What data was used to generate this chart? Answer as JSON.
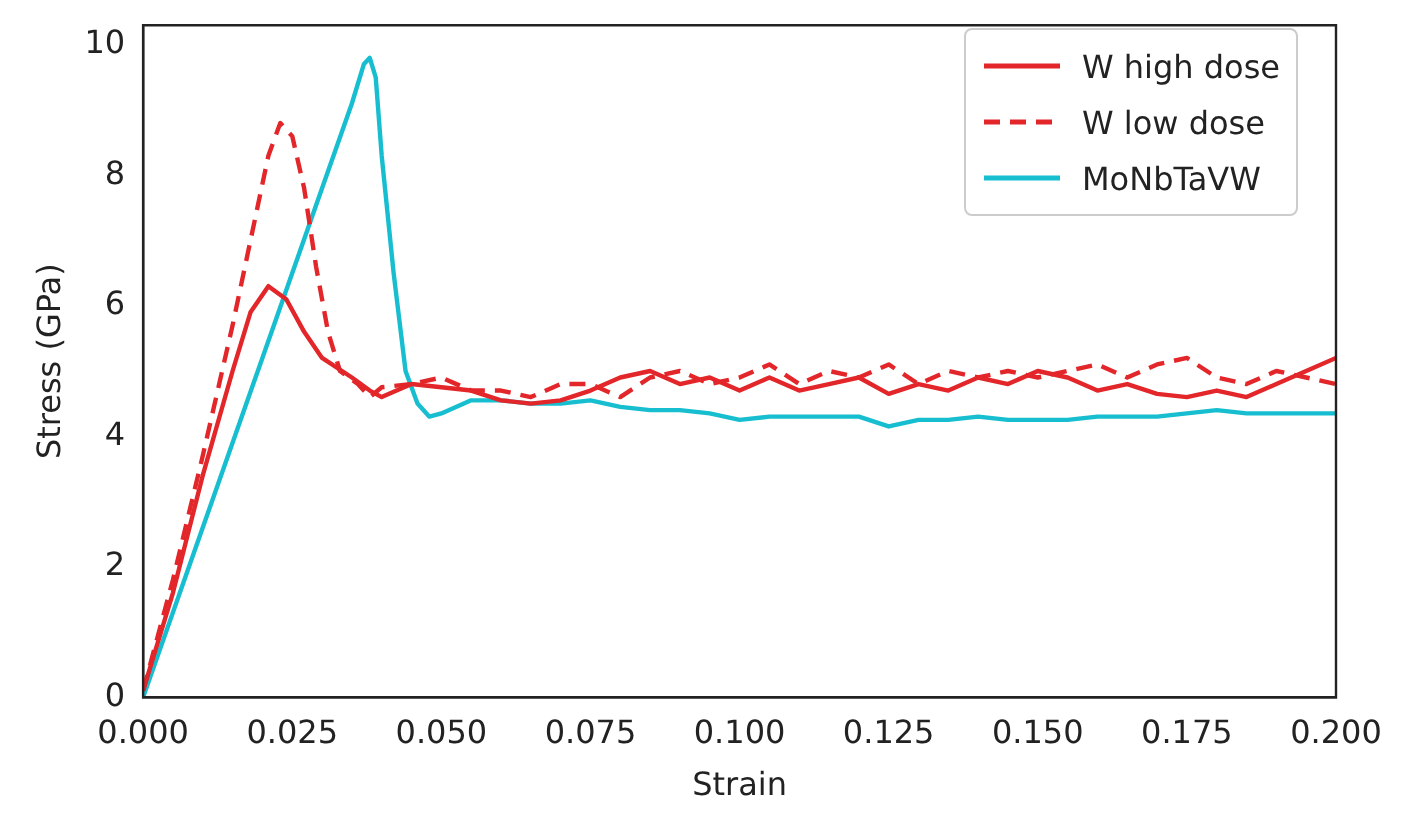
{
  "chart_data": {
    "type": "line",
    "xlabel": "Strain",
    "ylabel": "Stress (GPa)",
    "xlim": [
      0,
      0.2
    ],
    "ylim": [
      0,
      10.3
    ],
    "xticks": [
      {
        "value": 0,
        "label": "0.000"
      },
      {
        "value": 0.025,
        "label": "0.025"
      },
      {
        "value": 0.05,
        "label": "0.050"
      },
      {
        "value": 0.075,
        "label": "0.075"
      },
      {
        "value": 0.1,
        "label": "0.100"
      },
      {
        "value": 0.125,
        "label": "0.125"
      },
      {
        "value": 0.15,
        "label": "0.150"
      },
      {
        "value": 0.175,
        "label": "0.175"
      },
      {
        "value": 0.2,
        "label": "0.200"
      }
    ],
    "yticks": [
      0,
      2,
      4,
      6,
      8,
      10
    ],
    "grid": false,
    "legend": "top right",
    "marker": "none",
    "series": [
      {
        "name": "W high dose",
        "color": "#e3262a",
        "line_style": "solid",
        "x": [
          0,
          0.005,
          0.01,
          0.015,
          0.018,
          0.021,
          0.024,
          0.027,
          0.03,
          0.035,
          0.038,
          0.04,
          0.045,
          0.05,
          0.055,
          0.06,
          0.065,
          0.07,
          0.075,
          0.08,
          0.085,
          0.09,
          0.095,
          0.1,
          0.105,
          0.11,
          0.115,
          0.12,
          0.125,
          0.13,
          0.135,
          0.14,
          0.145,
          0.15,
          0.155,
          0.16,
          0.165,
          0.17,
          0.175,
          0.18,
          0.185,
          0.19,
          0.195,
          0.2
        ],
        "values": [
          0.1,
          1.6,
          3.4,
          5.0,
          5.9,
          6.3,
          6.1,
          5.6,
          5.2,
          4.9,
          4.7,
          4.6,
          4.8,
          4.75,
          4.7,
          4.55,
          4.5,
          4.55,
          4.7,
          4.9,
          5.0,
          4.8,
          4.9,
          4.7,
          4.9,
          4.7,
          4.8,
          4.9,
          4.65,
          4.8,
          4.7,
          4.9,
          4.8,
          5.0,
          4.9,
          4.7,
          4.8,
          4.65,
          4.6,
          4.7,
          4.6,
          4.8,
          5.0,
          5.2
        ]
      },
      {
        "name": "W low dose",
        "color": "#e3262a",
        "line_style": "dashed",
        "x": [
          0,
          0.005,
          0.01,
          0.015,
          0.018,
          0.021,
          0.023,
          0.025,
          0.027,
          0.029,
          0.031,
          0.033,
          0.036,
          0.038,
          0.04,
          0.045,
          0.05,
          0.055,
          0.06,
          0.065,
          0.07,
          0.075,
          0.08,
          0.085,
          0.09,
          0.095,
          0.1,
          0.105,
          0.11,
          0.115,
          0.12,
          0.125,
          0.13,
          0.135,
          0.14,
          0.145,
          0.15,
          0.155,
          0.16,
          0.165,
          0.17,
          0.175,
          0.18,
          0.185,
          0.19,
          0.195,
          0.2
        ],
        "values": [
          0.1,
          1.8,
          3.7,
          5.7,
          7.0,
          8.3,
          8.8,
          8.6,
          7.8,
          6.6,
          5.6,
          5.0,
          4.8,
          4.6,
          4.75,
          4.8,
          4.9,
          4.7,
          4.7,
          4.6,
          4.8,
          4.8,
          4.6,
          4.9,
          5.0,
          4.8,
          4.9,
          5.1,
          4.8,
          5.0,
          4.9,
          5.1,
          4.8,
          5.0,
          4.9,
          5.0,
          4.9,
          5.0,
          5.1,
          4.9,
          5.1,
          5.2,
          4.9,
          4.8,
          5.0,
          4.9,
          4.8
        ]
      },
      {
        "name": "MoNbTaVW",
        "color": "#17becf",
        "line_style": "solid",
        "x": [
          0,
          0.01,
          0.02,
          0.03,
          0.035,
          0.037,
          0.038,
          0.039,
          0.04,
          0.042,
          0.044,
          0.046,
          0.048,
          0.05,
          0.055,
          0.06,
          0.065,
          0.07,
          0.075,
          0.08,
          0.085,
          0.09,
          0.095,
          0.1,
          0.105,
          0.11,
          0.115,
          0.12,
          0.125,
          0.13,
          0.135,
          0.14,
          0.145,
          0.15,
          0.155,
          0.16,
          0.165,
          0.17,
          0.175,
          0.18,
          0.185,
          0.19,
          0.195,
          0.2
        ],
        "values": [
          0,
          2.6,
          5.2,
          7.8,
          9.1,
          9.7,
          9.8,
          9.5,
          8.3,
          6.5,
          5.0,
          4.5,
          4.3,
          4.35,
          4.55,
          4.55,
          4.5,
          4.5,
          4.55,
          4.45,
          4.4,
          4.4,
          4.35,
          4.25,
          4.3,
          4.3,
          4.3,
          4.3,
          4.15,
          4.25,
          4.25,
          4.3,
          4.25,
          4.25,
          4.25,
          4.3,
          4.3,
          4.3,
          4.35,
          4.4,
          4.35,
          4.35,
          4.35,
          4.35
        ]
      }
    ]
  }
}
